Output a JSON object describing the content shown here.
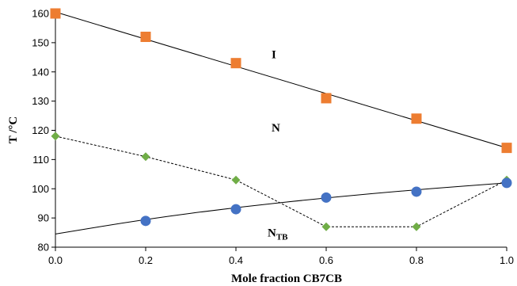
{
  "chart_data": {
    "type": "scatter",
    "title": "",
    "xlabel": "Mole fraction CB7CB",
    "ylabel": "T /°C",
    "xlim": [
      0,
      1
    ],
    "ylim": [
      80,
      160
    ],
    "x_ticks": [
      "0.0",
      "0.2",
      "0.4",
      "0.6",
      "0.8",
      "1.0"
    ],
    "y_ticks": [
      "80",
      "90",
      "100",
      "110",
      "120",
      "130",
      "140",
      "150",
      "160"
    ],
    "grid": false,
    "legend": "none",
    "region_labels": [
      {
        "text": "I",
        "x": 0.5,
        "y": 146
      },
      {
        "text": "N",
        "x": 0.5,
        "y": 121
      },
      {
        "text": "N",
        "subscript": "TB",
        "x": 0.5,
        "y": 85
      }
    ],
    "series": [
      {
        "marker": "square",
        "color": "#ED7D31",
        "x": [
          0.0,
          0.2,
          0.4,
          0.6,
          0.8,
          1.0
        ],
        "y": [
          160,
          152,
          143,
          131,
          124,
          114
        ]
      },
      {
        "marker": "diamond",
        "color": "#70AD47",
        "connector": "dashed",
        "x": [
          0.0,
          0.2,
          0.4,
          0.6,
          0.8,
          1.0
        ],
        "y": [
          118,
          111,
          103,
          87,
          87,
          103
        ]
      },
      {
        "marker": "circle",
        "color": "#4472C4",
        "x": [
          0.2,
          0.4,
          0.6,
          0.8,
          1.0
        ],
        "y": [
          89,
          93,
          97,
          99,
          102
        ]
      }
    ],
    "trendlines": [
      {
        "type": "linear",
        "x": [
          0.0,
          1.0
        ],
        "y": [
          160.5,
          114
        ]
      },
      {
        "type": "curve",
        "x": [
          0.0,
          0.2,
          0.4,
          0.6,
          0.8,
          1.0
        ],
        "y": [
          84.5,
          89.6,
          93.6,
          96.9,
          99.7,
          102
        ]
      }
    ]
  }
}
